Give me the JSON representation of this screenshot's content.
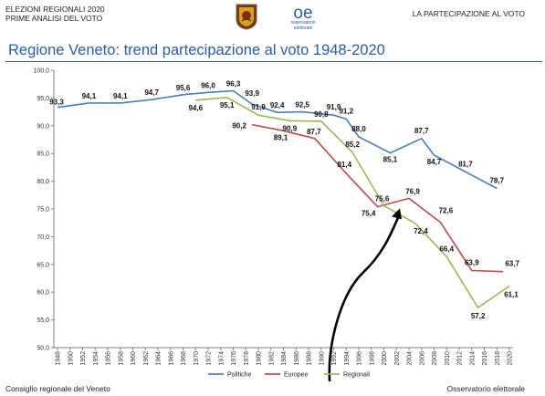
{
  "header": {
    "line1": "ELEZIONI REGIONALI 2020",
    "line2": "PRIME ANALISI DEL VOTO",
    "right": "LA PARTECIPAZIONE AL VOTO",
    "oe_logo_text_1": "osservatorio",
    "oe_logo_text_2": "elettorale"
  },
  "footer": {
    "left": "Consiglio regionale del Veneto",
    "right": "Osservatorio elettorale"
  },
  "colors": {
    "title": "#2a5ca6",
    "politiche": "#4a7ebb",
    "europee": "#be4b48",
    "regionali": "#98b954",
    "arrow": "#000000"
  },
  "chart_data": {
    "type": "line",
    "title": "Regione Veneto: trend partecipazione al voto 1948-2020",
    "ylim": [
      50,
      100
    ],
    "yticks": [
      "50,0",
      "55,0",
      "60,0",
      "65,0",
      "70,0",
      "75,0",
      "80,0",
      "85,0",
      "90,0",
      "95,0",
      "100,0"
    ],
    "categories": [
      "1948",
      "1950",
      "1952",
      "1954",
      "1956",
      "1958",
      "1960",
      "1962",
      "1964",
      "1966",
      "1968",
      "1970",
      "1972",
      "1974",
      "1976",
      "1978",
      "1980",
      "1982",
      "1984",
      "1986",
      "1988",
      "1990",
      "1992",
      "1994",
      "1996",
      "1998",
      "2000",
      "2002",
      "2004",
      "2006",
      "2008",
      "2010",
      "2012",
      "2014",
      "2016",
      "2018",
      "2020"
    ],
    "legend_position": "bottom",
    "grid": false,
    "series": [
      {
        "name": "Politiche",
        "color_key": "politiche",
        "points": [
          {
            "x": "1948",
            "y": 93.3,
            "label": "93,3"
          },
          {
            "x": "1953",
            "y": 94.1,
            "label": "94,1"
          },
          {
            "x": "1958",
            "y": 94.1,
            "label": "94,1"
          },
          {
            "x": "1963",
            "y": 94.7,
            "label": "94,7"
          },
          {
            "x": "1968",
            "y": 95.6,
            "label": "95,6"
          },
          {
            "x": "1972",
            "y": 96.0,
            "label": "96,0"
          },
          {
            "x": "1976",
            "y": 96.3,
            "label": "96,3"
          },
          {
            "x": "1979",
            "y": 93.9,
            "label": "93,9"
          },
          {
            "x": "1983",
            "y": 92.4,
            "label": "92,4"
          },
          {
            "x": "1987",
            "y": 92.5,
            "label": "92,5"
          },
          {
            "x": "1992",
            "y": 91.9,
            "label": "91,9"
          },
          {
            "x": "1994",
            "y": 91.2,
            "label": "91,2"
          },
          {
            "x": "1996",
            "y": 88.0,
            "label": "88,0"
          },
          {
            "x": "2001",
            "y": 85.1,
            "label": "85,1"
          },
          {
            "x": "2006",
            "y": 87.7,
            "label": "87,7"
          },
          {
            "x": "2008",
            "y": 84.7,
            "label": "84,7"
          },
          {
            "x": "2013",
            "y": 81.7,
            "label": "81,7"
          },
          {
            "x": "2018",
            "y": 78.7,
            "label": "78,7"
          }
        ]
      },
      {
        "name": "Europee",
        "color_key": "europee",
        "points": [
          {
            "x": "1979",
            "y": 90.2,
            "label": "90,2"
          },
          {
            "x": "1984",
            "y": 89.1,
            "label": "89,1"
          },
          {
            "x": "1989",
            "y": 87.7,
            "label": "87,7"
          },
          {
            "x": "1994",
            "y": 81.4,
            "label": "81,4"
          },
          {
            "x": "1999",
            "y": 75.4,
            "label": "75,4"
          },
          {
            "x": "2004",
            "y": 76.9,
            "label": "76,9"
          },
          {
            "x": "2009",
            "y": 72.6,
            "label": "72,6"
          },
          {
            "x": "2014",
            "y": 63.9,
            "label": "63,9"
          },
          {
            "x": "2019",
            "y": 63.7,
            "label": "63,7"
          }
        ]
      },
      {
        "name": "Regionali",
        "color_key": "regionali",
        "points": [
          {
            "x": "1970",
            "y": 94.6,
            "label": "94,6"
          },
          {
            "x": "1975",
            "y": 95.1,
            "label": "95,1"
          },
          {
            "x": "1980",
            "y": 91.9,
            "label": "91,9"
          },
          {
            "x": "1985",
            "y": 90.9,
            "label": "90,9"
          },
          {
            "x": "1990",
            "y": 90.8,
            "label": "90,8"
          },
          {
            "x": "1995",
            "y": 85.2,
            "label": "85,2"
          },
          {
            "x": "2000",
            "y": 75.6,
            "label": "75,6"
          },
          {
            "x": "2005",
            "y": 72.4,
            "label": "72,4"
          },
          {
            "x": "2010",
            "y": 66.4,
            "label": "66,4"
          },
          {
            "x": "2015",
            "y": 57.2,
            "label": "57,2"
          },
          {
            "x": "2020",
            "y": 61.1,
            "label": "61,1"
          }
        ]
      }
    ]
  }
}
